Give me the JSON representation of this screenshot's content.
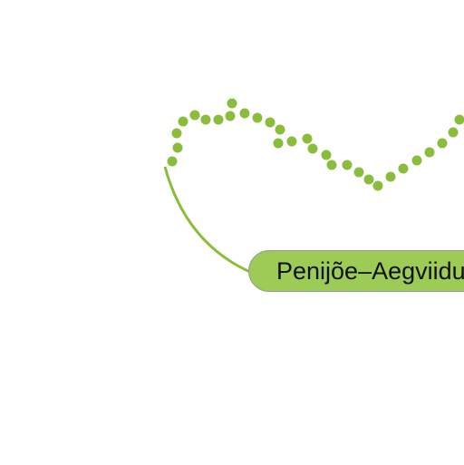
{
  "route": {
    "name": "Penijõe–Aegviidu",
    "color": "#8bbd3c",
    "label_fill": "#9ccb56",
    "label_border": "#9a9a9a",
    "line_style": "dotted"
  }
}
